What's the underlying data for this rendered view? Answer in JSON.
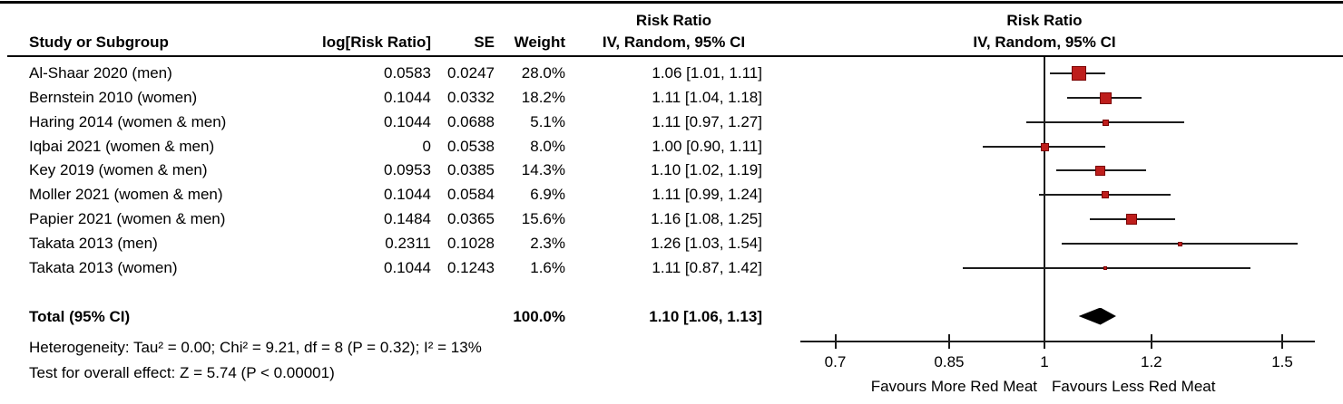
{
  "figure_title": "Forest plot - Risk Ratio meta-analysis",
  "columns": {
    "study": "Study or Subgroup",
    "log_rr": "log[Risk Ratio]",
    "se": "SE",
    "weight": "Weight",
    "ci_header_line1": "Risk Ratio",
    "ci_header_line2": "IV, Random, 95% CI",
    "plot_header_line1": "Risk Ratio",
    "plot_header_line2": "IV, Random, 95% CI"
  },
  "chart_data": {
    "type": "forest",
    "effect_measure": "Risk Ratio",
    "model": "IV, Random, 95% CI",
    "x_scale": "log",
    "x_ticks": [
      0.7,
      0.85,
      1,
      1.2,
      1.5
    ],
    "x_tick_labels": [
      "0.7",
      "0.85",
      "1",
      "1.2",
      "1.5"
    ],
    "studies": [
      {
        "name": "Al-Shaar 2020 (men)",
        "log_rr": "0.0583",
        "se": "0.0247",
        "weight": "28.0%",
        "weight_pct": 28.0,
        "ci_text": "1.06 [1.01, 1.11]",
        "rr": 1.06,
        "ci_low": 1.01,
        "ci_high": 1.11
      },
      {
        "name": "Bernstein 2010 (women)",
        "log_rr": "0.1044",
        "se": "0.0332",
        "weight": "18.2%",
        "weight_pct": 18.2,
        "ci_text": "1.11 [1.04, 1.18]",
        "rr": 1.11,
        "ci_low": 1.04,
        "ci_high": 1.18
      },
      {
        "name": "Haring 2014 (women & men)",
        "log_rr": "0.1044",
        "se": "0.0688",
        "weight": "5.1%",
        "weight_pct": 5.1,
        "ci_text": "1.11 [0.97, 1.27]",
        "rr": 1.11,
        "ci_low": 0.97,
        "ci_high": 1.27
      },
      {
        "name": "Iqbai 2021 (women & men)",
        "log_rr": "0",
        "se": "0.0538",
        "weight": "8.0%",
        "weight_pct": 8.0,
        "ci_text": "1.00 [0.90, 1.11]",
        "rr": 1.0,
        "ci_low": 0.9,
        "ci_high": 1.11
      },
      {
        "name": "Key 2019 (women & men)",
        "log_rr": "0.0953",
        "se": "0.0385",
        "weight": "14.3%",
        "weight_pct": 14.3,
        "ci_text": "1.10 [1.02, 1.19]",
        "rr": 1.1,
        "ci_low": 1.02,
        "ci_high": 1.19
      },
      {
        "name": "Moller 2021 (women & men)",
        "log_rr": "0.1044",
        "se": "0.0584",
        "weight": "6.9%",
        "weight_pct": 6.9,
        "ci_text": "1.11 [0.99, 1.24]",
        "rr": 1.11,
        "ci_low": 0.99,
        "ci_high": 1.24
      },
      {
        "name": "Papier 2021 (women & men)",
        "log_rr": "0.1484",
        "se": "0.0365",
        "weight": "15.6%",
        "weight_pct": 15.6,
        "ci_text": "1.16 [1.08, 1.25]",
        "rr": 1.16,
        "ci_low": 1.08,
        "ci_high": 1.25
      },
      {
        "name": "Takata 2013 (men)",
        "log_rr": "0.2311",
        "se": "0.1028",
        "weight": "2.3%",
        "weight_pct": 2.3,
        "ci_text": "1.26 [1.03, 1.54]",
        "rr": 1.26,
        "ci_low": 1.03,
        "ci_high": 1.54
      },
      {
        "name": "Takata 2013 (women)",
        "log_rr": "0.1044",
        "se": "0.1243",
        "weight": "1.6%",
        "weight_pct": 1.6,
        "ci_text": "1.11 [0.87, 1.42]",
        "rr": 1.11,
        "ci_low": 0.87,
        "ci_high": 1.42
      }
    ],
    "total": {
      "label": "Total (95% CI)",
      "weight": "100.0%",
      "ci_text": "1.10 [1.06, 1.13]",
      "rr": 1.1,
      "ci_low": 1.06,
      "ci_high": 1.13
    },
    "heterogeneity_text": "Heterogeneity: Tau² = 0.00; Chi² = 9.21, df = 8 (P = 0.32); I² = 13%",
    "overall_effect_text": "Test for overall effect: Z = 5.74 (P < 0.00001)",
    "favours_left": "Favours More Red Meat",
    "favours_right": "Favours Less Red Meat",
    "legend_position": "none",
    "grid": false
  },
  "colors": {
    "square_fill": "#be1e1c",
    "square_border": "#7a0000",
    "line": "#1c1c1c",
    "diamond": "#000000",
    "text": "#000000"
  }
}
